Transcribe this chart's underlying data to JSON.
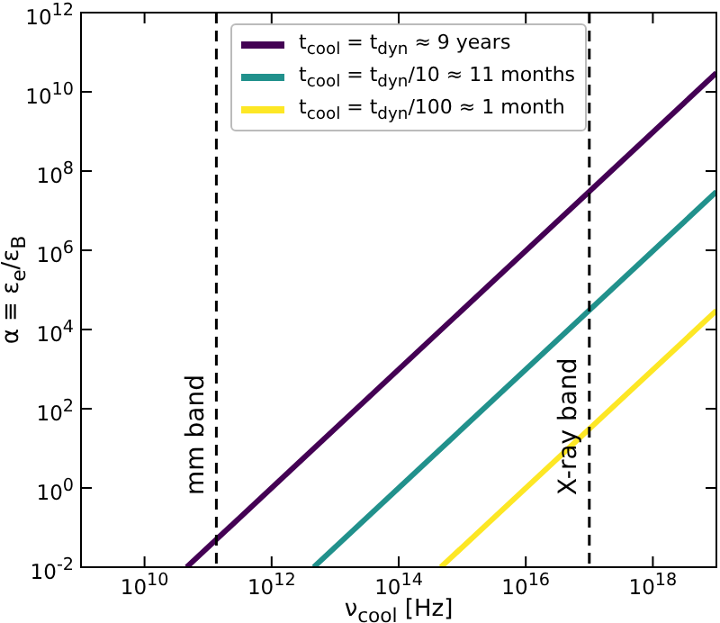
{
  "chart_data": {
    "type": "line",
    "xlabel": "ν$_{cool}$ [Hz]",
    "ylabel": "α ≡ ε$_{e}$/ε$_{B}$",
    "log": "xy",
    "grid": false,
    "legend": "top",
    "marker": "none",
    "line_style": "solid",
    "xlim": [
      1000000000.0,
      1e+19
    ],
    "ylim": [
      0.01,
      1000000000000.0
    ],
    "xticks": [
      {
        "value": 10000000000.0,
        "label": "10$^{10}$"
      },
      {
        "value": 1000000000000.0,
        "label": "10$^{12}$"
      },
      {
        "value": 100000000000000.0,
        "label": "10$^{14}$"
      },
      {
        "value": 1e+16,
        "label": "10$^{16}$"
      },
      {
        "value": 1e+18,
        "label": "10$^{18}$"
      }
    ],
    "yticks": [
      {
        "value": 0.01,
        "label": "10$^{-2}$"
      },
      {
        "value": 1,
        "label": "10$^{0}$"
      },
      {
        "value": 100,
        "label": "10$^{2}$"
      },
      {
        "value": 10000,
        "label": "10$^{4}$"
      },
      {
        "value": 1000000.0,
        "label": "10$^{6}$"
      },
      {
        "value": 100000000.0,
        "label": "10$^{8}$"
      },
      {
        "value": 10000000000.0,
        "label": "10$^{10}$"
      },
      {
        "value": 1000000000000.0,
        "label": "10$^{12}$"
      }
    ],
    "series": [
      {
        "name": "t$_{cool}$ = t$_{dyn}$ ≈ 9 years",
        "color": "#440154",
        "x": [
          46000000000.0,
          1e+19
        ],
        "values": [
          0.01,
          30000000000.0
        ]
      },
      {
        "name": "t$_{cool}$ = t$_{dyn}$/10 ≈ 11 months",
        "color": "#21918c",
        "x": [
          4600000000000.0,
          1e+19
        ],
        "values": [
          0.01,
          30000000.0
        ]
      },
      {
        "name": "t$_{cool}$ = t$_{dyn}$/100 ≈ 1 month",
        "color": "#fde725",
        "x": [
          460000000000000.0,
          1e+19
        ],
        "values": [
          0.01,
          30000.0
        ]
      }
    ],
    "ref_lines": [
      {
        "axis": "x",
        "value": 135000000000.0,
        "label": "mm band",
        "color": "#000000",
        "line_style": "dashed"
      },
      {
        "axis": "x",
        "value": 1e+17,
        "label": "X-ray band",
        "color": "#000000",
        "line_style": "dashed"
      }
    ]
  }
}
